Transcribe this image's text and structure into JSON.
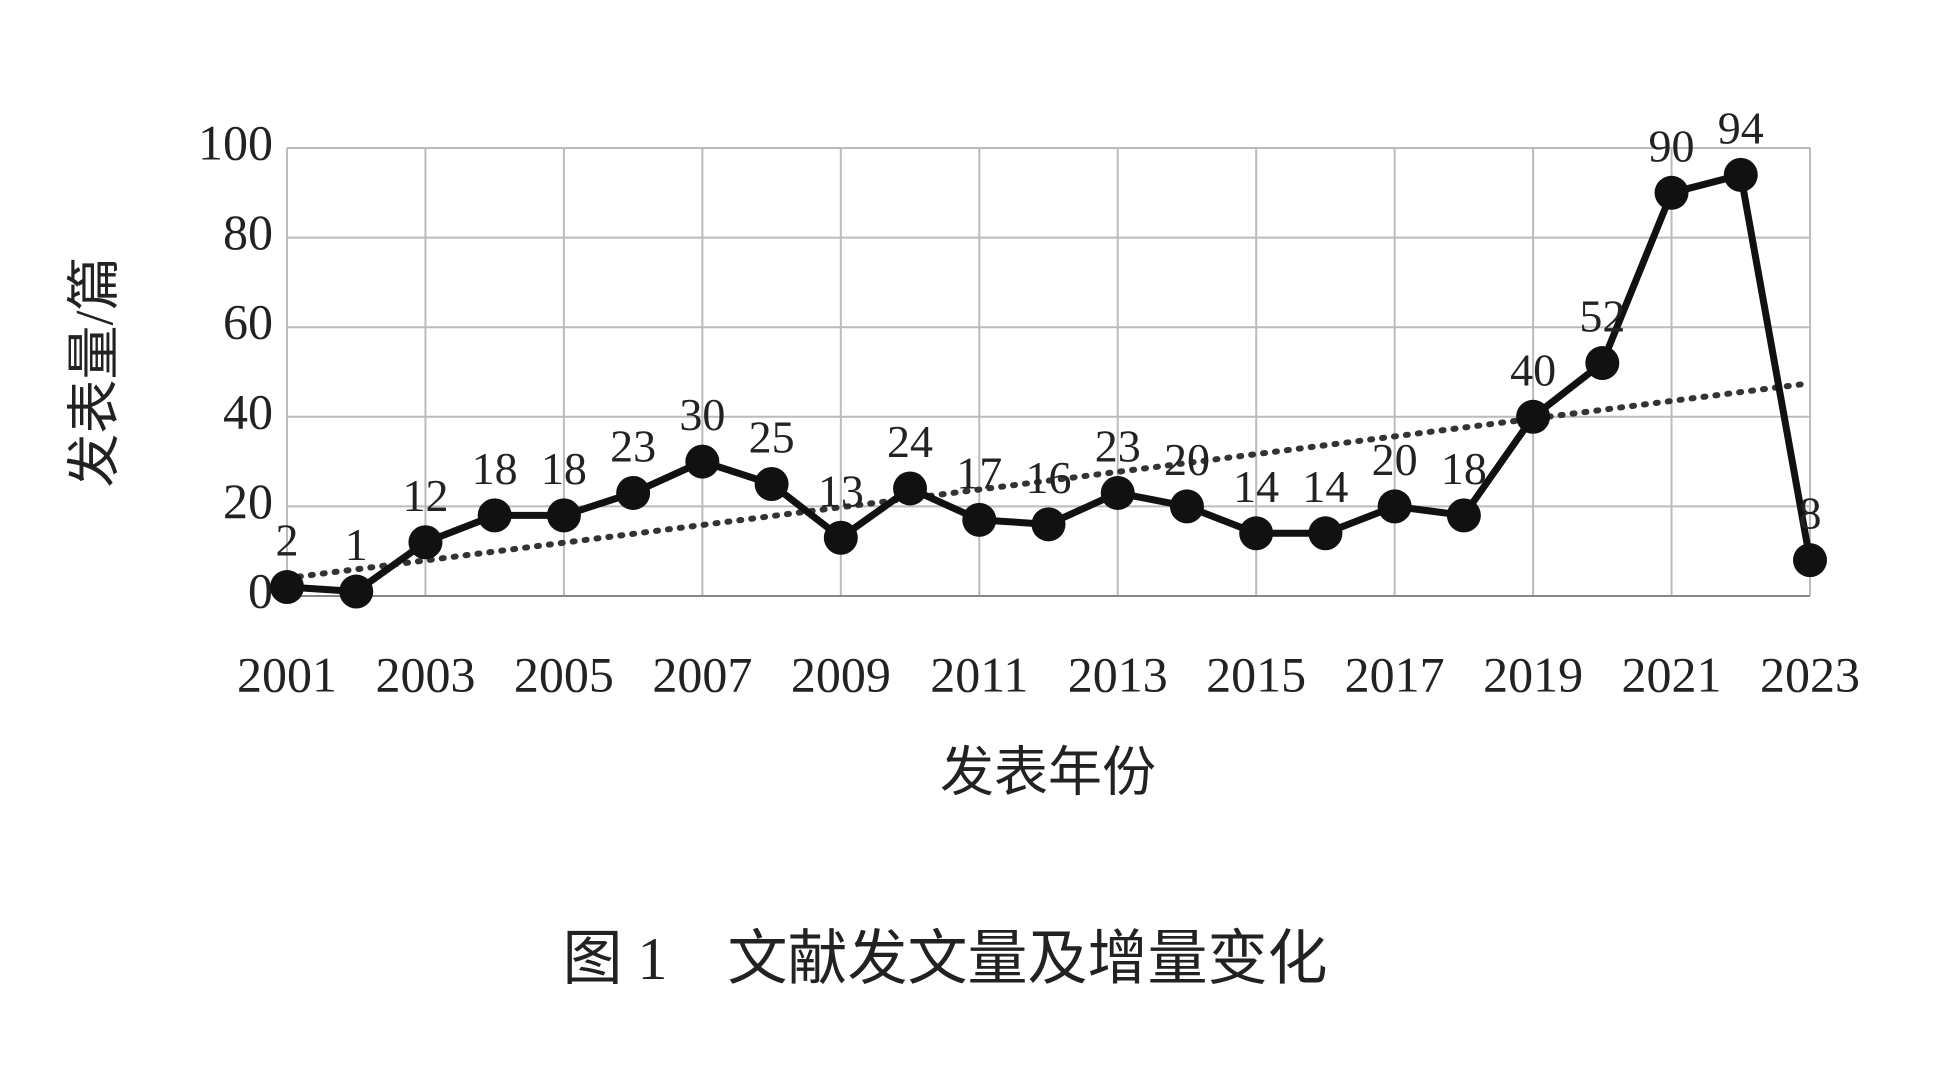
{
  "chart_data": {
    "type": "line",
    "y_label": "发表量/篇",
    "x_label": "发表年份",
    "caption": "图 1　文献发文量及增量变化",
    "categories": [
      "2001",
      null,
      "2003",
      null,
      "2005",
      null,
      "2007",
      null,
      "2009",
      null,
      "2011",
      null,
      "2013",
      null,
      "2015",
      null,
      "2017",
      null,
      "2019",
      null,
      "2021",
      null,
      "2023"
    ],
    "values": [
      2,
      1,
      12,
      18,
      18,
      23,
      30,
      25,
      13,
      24,
      17,
      16,
      23,
      20,
      14,
      14,
      20,
      18,
      40,
      52,
      90,
      94,
      8
    ],
    "color": "#111111",
    "ylim": [
      0,
      100
    ],
    "yticks": [
      0,
      20,
      40,
      60,
      80,
      100
    ],
    "grid": true,
    "trendline": "linear",
    "data_labels": true
  }
}
